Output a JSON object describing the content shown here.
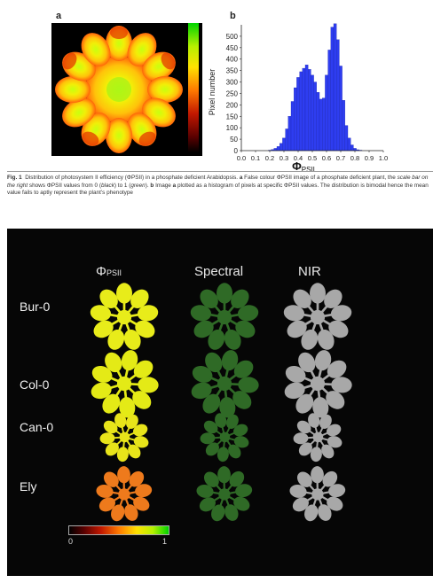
{
  "figure": {
    "panel_a_letter": "a",
    "panel_b_letter": "b"
  },
  "chart_data": {
    "type": "bar",
    "xlabel": "Φ",
    "xlabel_sub": "PSII",
    "ylabel": "Pixel number",
    "xlim": [
      0,
      1
    ],
    "ylim": [
      0,
      550
    ],
    "x_ticks": [
      "0.0",
      "0.1",
      "0.2",
      "0.3",
      "0.4",
      "0.5",
      "0.6",
      "0.7",
      "0.8",
      "0.9",
      "1.0"
    ],
    "y_ticks": [
      "0",
      "50",
      "100",
      "150",
      "200",
      "250",
      "300",
      "350",
      "400",
      "450",
      "500"
    ],
    "bar_color": "#2e3df0",
    "x": [
      0.2,
      0.22,
      0.24,
      0.26,
      0.28,
      0.3,
      0.32,
      0.34,
      0.36,
      0.38,
      0.4,
      0.42,
      0.44,
      0.46,
      0.48,
      0.5,
      0.52,
      0.54,
      0.56,
      0.58,
      0.6,
      0.62,
      0.64,
      0.66,
      0.68,
      0.7,
      0.72,
      0.74,
      0.76,
      0.78,
      0.8,
      0.82,
      0.84
    ],
    "values": [
      2,
      5,
      10,
      18,
      32,
      55,
      95,
      150,
      215,
      275,
      320,
      345,
      360,
      375,
      355,
      330,
      300,
      255,
      225,
      230,
      330,
      440,
      540,
      555,
      485,
      370,
      220,
      110,
      55,
      25,
      10,
      4,
      2
    ]
  },
  "caption": {
    "fig_label": "Fig. 1",
    "s1": "Distribution of photosystem II efficiency (ΦPSII) in a phosphate deficient Arabidopsis. ",
    "a": "a",
    "s2": " False colour ΦPSII image of a phosphate deficient plant, the ",
    "scale_bar": "scale bar on the right",
    "s3": " shows ΦPSII values from 0 (",
    "black": "black",
    "s4": ") to 1 (",
    "green": "green",
    "s5": "). ",
    "b": "b",
    "s6": " Image ",
    "a2": "a",
    "s7": " plotted as a histogram of pixels at specific ΦPSII values. The distribution is bimodal hence the mean value fails to aptly represent the plant’s phenotype"
  },
  "bottom_panel": {
    "col_phi": "Φ",
    "col_phi_sub": "PSII",
    "col_spectral": "Spectral",
    "col_nir": "NIR",
    "rows": [
      {
        "label": "Bur-0",
        "phi_color": "#e8ec1a"
      },
      {
        "label": "Col-0",
        "phi_color": "#e4ea16"
      },
      {
        "label": "Can-0",
        "phi_color": "#e8e41a"
      },
      {
        "label": "Ely",
        "phi_color": "#ee7a1c"
      }
    ],
    "colorbar_min": "0",
    "colorbar_max": "1"
  }
}
